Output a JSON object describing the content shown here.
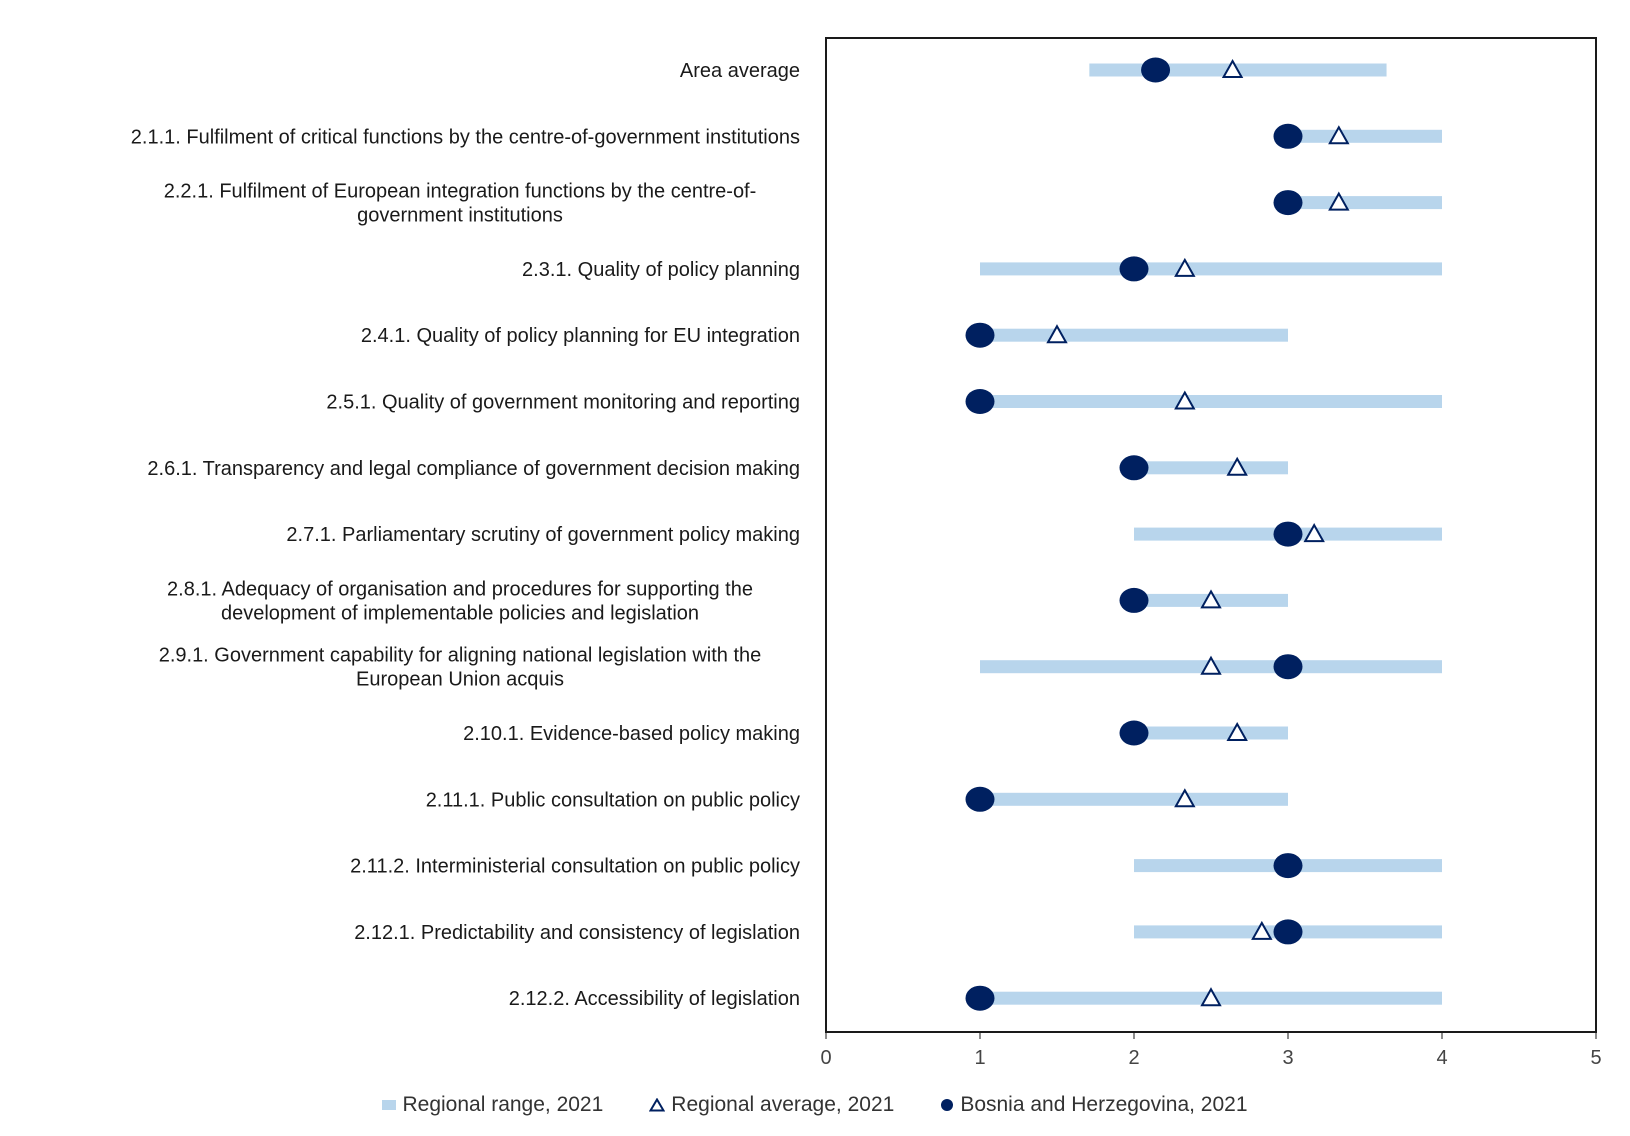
{
  "chart_data": {
    "type": "range-dot",
    "categories": [
      "Area average",
      "2.1.1. Fulfilment of critical functions by the centre-of-government institutions",
      "2.2.1. Fulfilment of European integration functions by the centre-of-government institutions",
      "2.3.1. Quality of policy planning",
      "2.4.1. Quality of policy planning for EU integration",
      "2.5.1. Quality of government monitoring and reporting",
      "2.6.1. Transparency and legal compliance of government decision making",
      "2.7.1. Parliamentary scrutiny of government policy making",
      "2.8.1. Adequacy of organisation and procedures for supporting the development of implementable policies and legislation",
      "2.9.1. Government capability for aligning national legislation with the European Union acquis",
      "2.10.1. Evidence-based policy making",
      "2.11.1. Public consultation on public policy",
      "2.11.2. Interministerial consultation on public policy",
      "2.12.1. Predictability and consistency of legislation",
      "2.12.2. Accessibility of legislation"
    ],
    "label_lines": [
      [
        "Area average"
      ],
      [
        "2.1.1. Fulfilment of critical functions by the centre-of-government institutions"
      ],
      [
        "2.2.1. Fulfilment of European integration functions by the centre-of-",
        "government institutions"
      ],
      [
        "2.3.1. Quality of policy planning"
      ],
      [
        "2.4.1. Quality of policy planning for EU integration"
      ],
      [
        "2.5.1. Quality of government monitoring and reporting"
      ],
      [
        "2.6.1. Transparency and legal compliance of government decision making"
      ],
      [
        "2.7.1. Parliamentary scrutiny of government policy making"
      ],
      [
        "2.8.1. Adequacy of organisation and procedures for supporting the",
        "development of implementable policies and legislation"
      ],
      [
        "2.9.1. Government capability for aligning national legislation with the",
        "European Union acquis"
      ],
      [
        "2.10.1. Evidence-based policy making"
      ],
      [
        "2.11.1. Public consultation on public policy"
      ],
      [
        "2.11.2. Interministerial consultation on public policy"
      ],
      [
        "2.12.1. Predictability and consistency of legislation"
      ],
      [
        "2.12.2. Accessibility of legislation"
      ]
    ],
    "series": [
      {
        "name": "Regional range, 2021",
        "kind": "range",
        "color": "#b8d5ec",
        "values": [
          [
            1.71,
            3.64
          ],
          [
            3,
            4
          ],
          [
            3,
            4
          ],
          [
            1,
            4
          ],
          [
            1,
            3
          ],
          [
            1,
            4
          ],
          [
            2,
            3
          ],
          [
            2,
            4
          ],
          [
            2,
            3
          ],
          [
            1,
            4
          ],
          [
            2,
            3
          ],
          [
            1,
            3
          ],
          [
            2,
            4
          ],
          [
            2,
            4
          ],
          [
            1,
            4
          ]
        ]
      },
      {
        "name": "Regional average, 2021",
        "kind": "triangle",
        "color": "#002060",
        "values": [
          2.64,
          3.33,
          3.33,
          2.33,
          1.5,
          2.33,
          2.67,
          3.17,
          2.5,
          2.5,
          2.67,
          2.33,
          null,
          2.83,
          2.5
        ]
      },
      {
        "name": "Bosnia and Herzegovina, 2021",
        "kind": "dot",
        "color": "#002060",
        "values": [
          2.14,
          3,
          3,
          2,
          1,
          1,
          2,
          3,
          2,
          3,
          2,
          1,
          3,
          3,
          1
        ]
      }
    ],
    "xlim": [
      0,
      5
    ],
    "xticks": [
      0,
      1,
      2,
      3,
      4,
      5
    ],
    "xlabel": "",
    "ylabel": "",
    "title": "",
    "grid": false,
    "legend_position": "bottom"
  }
}
